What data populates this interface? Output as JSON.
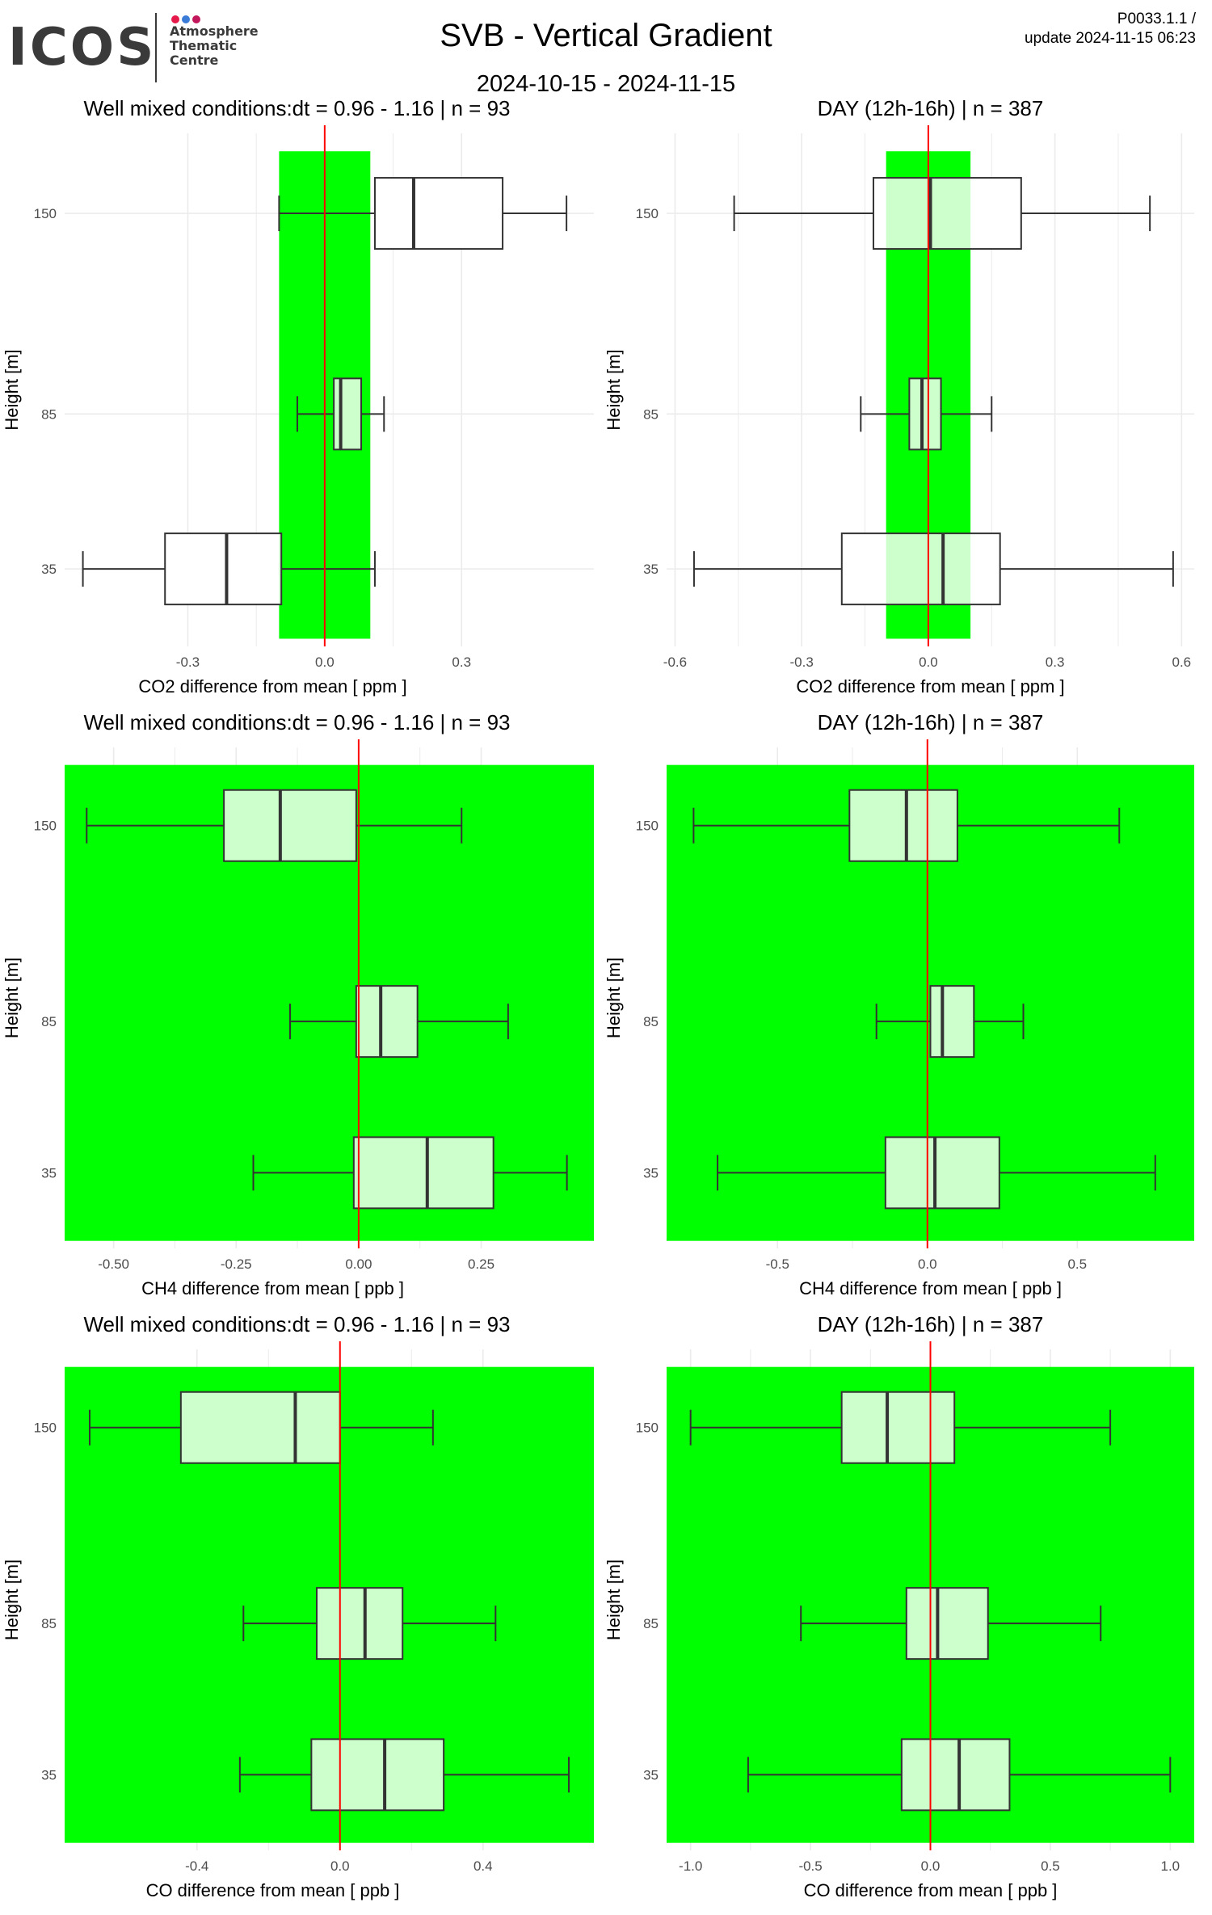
{
  "header": {
    "logo_text": "ICOS",
    "logo_subtitle": [
      "Atmosphere",
      "Thematic",
      "Centre"
    ],
    "title": "SVB - Vertical Gradient",
    "date_range": "2024-10-15 - 2024-11-15",
    "version": "P0033.1.1 /",
    "update": "update  2024-11-15 06:23"
  },
  "colors": {
    "band": "#00ff00",
    "box_fill": "#ccffcc",
    "mean_line": "#ff0000",
    "grid": "#ebebeb",
    "logo_dots": [
      "#e6194b",
      "#3b7bd8",
      "#c2185b"
    ]
  },
  "chart_data": [
    {
      "type": "boxplot",
      "title": "Well mixed conditions:dt = 0.96 - 1.16 | n = 93",
      "xlabel": "CO2  difference from mean [ ppm ]",
      "ylabel": "Height [m]",
      "xlim": [
        -0.57,
        0.59
      ],
      "xticks": [
        -0.3,
        0.0,
        0.3
      ],
      "xtick_labels": [
        "-0.3",
        "0.0",
        "0.3"
      ],
      "band": [
        -0.1,
        0.1
      ],
      "heights": [
        "150",
        "85",
        "35"
      ],
      "boxes": [
        {
          "whisker_low": -0.1,
          "q1": 0.11,
          "median": 0.195,
          "q3": 0.39,
          "whisker_high": 0.53
        },
        {
          "whisker_low": -0.06,
          "q1": 0.02,
          "median": 0.035,
          "q3": 0.08,
          "whisker_high": 0.13
        },
        {
          "whisker_low": -0.53,
          "q1": -0.35,
          "median": -0.215,
          "q3": -0.095,
          "whisker_high": 0.11
        }
      ]
    },
    {
      "type": "boxplot",
      "title": "DAY (12h-16h) | n = 387",
      "xlabel": "CO2  difference from mean [ ppm ]",
      "ylabel": "Height [m]",
      "xlim": [
        -0.62,
        0.63
      ],
      "xticks": [
        -0.6,
        -0.3,
        0.0,
        0.3,
        0.6
      ],
      "xtick_labels": [
        "-0.6",
        "-0.3",
        "0.0",
        "0.3",
        "0.6"
      ],
      "band": [
        -0.1,
        0.1
      ],
      "heights": [
        "150",
        "85",
        "35"
      ],
      "boxes": [
        {
          "whisker_low": -0.46,
          "q1": -0.13,
          "median": 0.005,
          "q3": 0.22,
          "whisker_high": 0.525
        },
        {
          "whisker_low": -0.16,
          "q1": -0.045,
          "median": -0.015,
          "q3": 0.03,
          "whisker_high": 0.15
        },
        {
          "whisker_low": -0.555,
          "q1": -0.205,
          "median": 0.035,
          "q3": 0.17,
          "whisker_high": 0.58
        }
      ]
    },
    {
      "type": "boxplot",
      "title": "Well mixed conditions:dt = 0.96 - 1.16 | n = 93",
      "xlabel": "CH4  difference from mean [ ppb ]",
      "ylabel": "Height [m]",
      "xlim": [
        -0.6,
        0.48
      ],
      "xticks": [
        -0.5,
        -0.25,
        0.0,
        0.25
      ],
      "xtick_labels": [
        "-0.50",
        "-0.25",
        "0.00",
        "0.25"
      ],
      "band": "full",
      "heights": [
        "150",
        "85",
        "35"
      ],
      "boxes": [
        {
          "whisker_low": -0.555,
          "q1": -0.275,
          "median": -0.16,
          "q3": -0.005,
          "whisker_high": 0.21
        },
        {
          "whisker_low": -0.14,
          "q1": -0.005,
          "median": 0.045,
          "q3": 0.12,
          "whisker_high": 0.305
        },
        {
          "whisker_low": -0.215,
          "q1": -0.01,
          "median": 0.14,
          "q3": 0.275,
          "whisker_high": 0.425
        }
      ]
    },
    {
      "type": "boxplot",
      "title": "DAY (12h-16h) | n = 387",
      "xlabel": "CH4  difference from mean [ ppb ]",
      "ylabel": "Height [m]",
      "xlim": [
        -0.87,
        0.89
      ],
      "xticks": [
        -0.5,
        0.0,
        0.5
      ],
      "xtick_labels": [
        "-0.5",
        "0.0",
        "0.5"
      ],
      "band": "full",
      "heights": [
        "150",
        "85",
        "35"
      ],
      "boxes": [
        {
          "whisker_low": -0.78,
          "q1": -0.26,
          "median": -0.07,
          "q3": 0.1,
          "whisker_high": 0.64
        },
        {
          "whisker_low": -0.17,
          "q1": 0.01,
          "median": 0.05,
          "q3": 0.155,
          "whisker_high": 0.32
        },
        {
          "whisker_low": -0.7,
          "q1": -0.14,
          "median": 0.025,
          "q3": 0.24,
          "whisker_high": 0.76
        }
      ]
    },
    {
      "type": "boxplot",
      "title": "Well mixed conditions:dt = 0.96 - 1.16 | n = 93",
      "xlabel": "CO  difference from mean [ ppb ]",
      "ylabel": "Height [m]",
      "xlim": [
        -0.77,
        0.71
      ],
      "xticks": [
        -0.4,
        0.0,
        0.4
      ],
      "xtick_labels": [
        "-0.4",
        "0.0",
        "0.4"
      ],
      "band": "full",
      "heights": [
        "150",
        "85",
        "35"
      ],
      "boxes": [
        {
          "whisker_low": -0.7,
          "q1": -0.445,
          "median": -0.125,
          "q3": 0.0,
          "whisker_high": 0.26
        },
        {
          "whisker_low": -0.27,
          "q1": -0.065,
          "median": 0.07,
          "q3": 0.175,
          "whisker_high": 0.435
        },
        {
          "whisker_low": -0.28,
          "q1": -0.08,
          "median": 0.125,
          "q3": 0.29,
          "whisker_high": 0.64
        }
      ]
    },
    {
      "type": "boxplot",
      "title": "DAY (12h-16h) | n = 387",
      "xlabel": "CO  difference from mean [ ppb ]",
      "ylabel": "Height [m]",
      "xlim": [
        -1.1,
        1.1
      ],
      "xticks": [
        -1.0,
        -0.5,
        0.0,
        0.5,
        1.0
      ],
      "xtick_labels": [
        "-1.0",
        "-0.5",
        "0.0",
        "0.5",
        "1.0"
      ],
      "band": "full",
      "heights": [
        "150",
        "85",
        "35"
      ],
      "boxes": [
        {
          "whisker_low": -1.0,
          "q1": -0.37,
          "median": -0.18,
          "q3": 0.1,
          "whisker_high": 0.75
        },
        {
          "whisker_low": -0.54,
          "q1": -0.1,
          "median": 0.03,
          "q3": 0.24,
          "whisker_high": 0.71
        },
        {
          "whisker_low": -0.76,
          "q1": -0.12,
          "median": 0.12,
          "q3": 0.33,
          "whisker_high": 1.0
        }
      ]
    }
  ]
}
